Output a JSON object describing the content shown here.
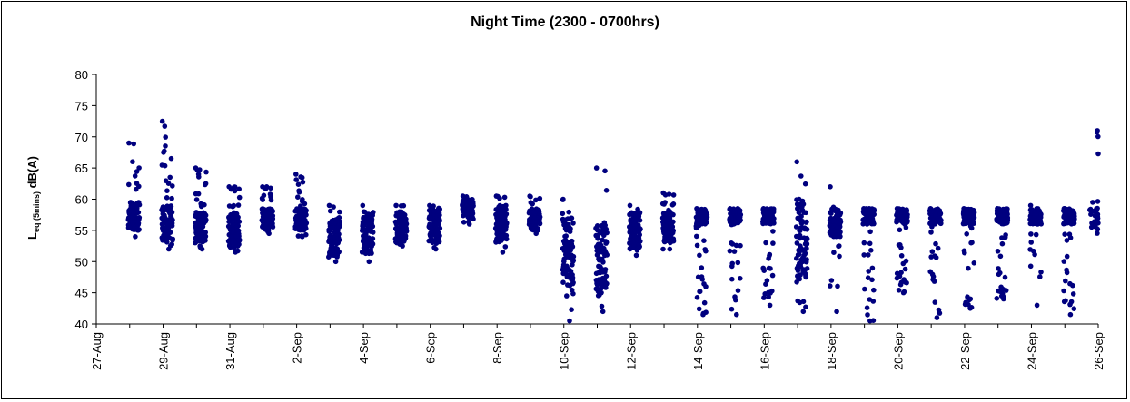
{
  "chart_data": {
    "type": "scatter",
    "title": "Night Time (2300 - 0700hrs)",
    "ylabel_main": "L",
    "ylabel_sub": "eq (5mins)",
    "ylabel_unit": " dB(A)",
    "xlabel": "",
    "ylim": [
      40,
      80
    ],
    "yticks": [
      40,
      45,
      50,
      55,
      60,
      65,
      70,
      75,
      80
    ],
    "xlim": [
      "2008-08-27",
      "2008-09-26"
    ],
    "xtick_labels": [
      "27-Aug",
      "29-Aug",
      "31-Aug",
      "2-Sep",
      "4-Sep",
      "6-Sep",
      "8-Sep",
      "10-Sep",
      "12-Sep",
      "14-Sep",
      "16-Sep",
      "18-Sep",
      "20-Sep",
      "22-Sep",
      "24-Sep",
      "26-Sep"
    ],
    "grid": false,
    "legend": "none",
    "marker_color": "#00007f",
    "nights": [
      {
        "start": "2008-08-27",
        "min": 54,
        "max": 69,
        "bulk": [
          55,
          59.5
        ]
      },
      {
        "start": "2008-08-28",
        "min": 52,
        "max": 72.5,
        "bulk": [
          53,
          59
        ]
      },
      {
        "start": "2008-08-29",
        "min": 52,
        "max": 65,
        "bulk": [
          53,
          58
        ]
      },
      {
        "start": "2008-08-30",
        "min": 51.5,
        "max": 62,
        "bulk": [
          52,
          57.5
        ]
      },
      {
        "start": "2008-08-31",
        "min": 54.5,
        "max": 62,
        "bulk": [
          55,
          58.5
        ]
      },
      {
        "start": "2008-09-01",
        "min": 54,
        "max": 64,
        "bulk": [
          55,
          58.5
        ]
      },
      {
        "start": "2008-09-02",
        "min": 50,
        "max": 59,
        "bulk": [
          51,
          57
        ]
      },
      {
        "start": "2008-09-03",
        "min": 50,
        "max": 59,
        "bulk": [
          51,
          58
        ]
      },
      {
        "start": "2008-09-04",
        "min": 52.5,
        "max": 59,
        "bulk": [
          53,
          58
        ]
      },
      {
        "start": "2008-09-05",
        "min": 52,
        "max": 59,
        "bulk": [
          53,
          58.5
        ]
      },
      {
        "start": "2008-09-06",
        "min": 56,
        "max": 60.5,
        "bulk": [
          57,
          60
        ]
      },
      {
        "start": "2008-09-07",
        "min": 51.5,
        "max": 60.5,
        "bulk": [
          53,
          59
        ]
      },
      {
        "start": "2008-09-08",
        "min": 54.5,
        "max": 60.5,
        "bulk": [
          55,
          58.5
        ]
      },
      {
        "start": "2008-09-09",
        "min": 40.5,
        "max": 60,
        "bulk": [
          46,
          57
        ]
      },
      {
        "start": "2008-09-10",
        "min": 42,
        "max": 65,
        "bulk": [
          45,
          56
        ]
      },
      {
        "start": "2008-09-11",
        "min": 51,
        "max": 59,
        "bulk": [
          52,
          58
        ]
      },
      {
        "start": "2008-09-12",
        "min": 52,
        "max": 61,
        "bulk": [
          53,
          58
        ]
      },
      {
        "start": "2008-09-13",
        "min": 41.5,
        "max": 58.5,
        "bulk": [
          56,
          58.5
        ]
      },
      {
        "start": "2008-09-14",
        "min": 41.5,
        "max": 58.5,
        "bulk": [
          56,
          58.5
        ]
      },
      {
        "start": "2008-09-15",
        "min": 43,
        "max": 58.5,
        "bulk": [
          56,
          58.5
        ]
      },
      {
        "start": "2008-09-16",
        "min": 42,
        "max": 66,
        "bulk": [
          47,
          60
        ]
      },
      {
        "start": "2008-09-17",
        "min": 42,
        "max": 62,
        "bulk": [
          54,
          58.5
        ]
      },
      {
        "start": "2008-09-18",
        "min": 40.5,
        "max": 58.5,
        "bulk": [
          56,
          58.5
        ]
      },
      {
        "start": "2008-09-19",
        "min": 45,
        "max": 58.5,
        "bulk": [
          56,
          58.5
        ]
      },
      {
        "start": "2008-09-20",
        "min": 41,
        "max": 58.5,
        "bulk": [
          56,
          58.5
        ]
      },
      {
        "start": "2008-09-21",
        "min": 42.5,
        "max": 58.5,
        "bulk": [
          56,
          58.5
        ]
      },
      {
        "start": "2008-09-22",
        "min": 44,
        "max": 58.5,
        "bulk": [
          56,
          58.5
        ]
      },
      {
        "start": "2008-09-23",
        "min": 43,
        "max": 59,
        "bulk": [
          56,
          58.5
        ]
      },
      {
        "start": "2008-09-24",
        "min": 41.5,
        "max": 58.5,
        "bulk": [
          56,
          58.5
        ]
      },
      {
        "start": "2008-09-25",
        "min": 52.5,
        "max": 71,
        "bulk": [
          54,
          60
        ]
      },
      {
        "start": "2008-09-26",
        "min": 55.5,
        "max": 59.5,
        "bulk": [
          56,
          58.5
        ]
      }
    ]
  }
}
